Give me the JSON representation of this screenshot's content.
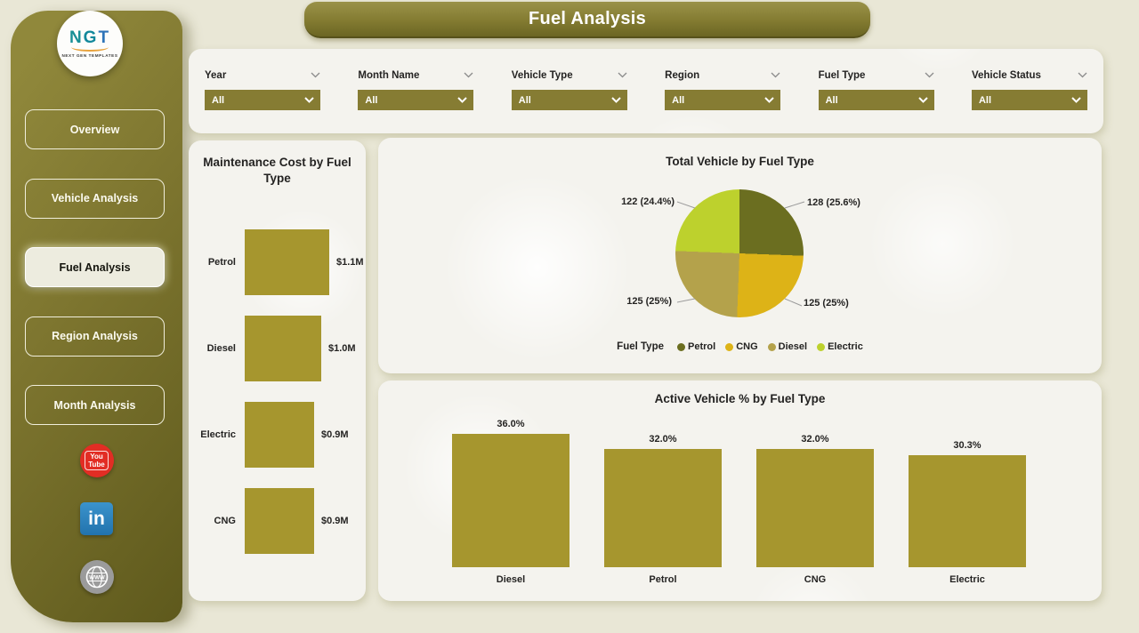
{
  "page": {
    "title": "Fuel Analysis"
  },
  "sidebar": {
    "logo": {
      "text": "NGT",
      "subtext": "NEXT GEN TEMPLATES"
    },
    "items": [
      {
        "label": "Overview",
        "active": false
      },
      {
        "label": "Vehicle Analysis",
        "active": false
      },
      {
        "label": "Fuel Analysis",
        "active": true
      },
      {
        "label": "Region Analysis",
        "active": false
      },
      {
        "label": "Month Analysis",
        "active": false
      }
    ],
    "social": [
      {
        "name": "youtube",
        "lines": [
          "You",
          "Tube"
        ],
        "color": "#e22d24"
      },
      {
        "name": "linkedin",
        "label": "in",
        "color": "#2a7fbc"
      },
      {
        "name": "website",
        "label": "WWW",
        "color": "#9b9b9b"
      }
    ]
  },
  "filters": [
    {
      "label": "Year",
      "value": "All"
    },
    {
      "label": "Month Name",
      "value": "All"
    },
    {
      "label": "Vehicle Type",
      "value": "All"
    },
    {
      "label": "Region",
      "value": "All"
    },
    {
      "label": "Fuel Type",
      "value": "All"
    },
    {
      "label": "Vehicle Status",
      "value": "All"
    }
  ],
  "colors": {
    "accent_olive": "#837b31",
    "bar_fill": "#a6962e",
    "dropdown_bg": "#867c33",
    "panel_bg": "#f4f3ee",
    "page_bg": "#e9e7d6"
  },
  "chart_data": [
    {
      "type": "bar",
      "orientation": "horizontal",
      "title": "Maintenance Cost by Fuel Type",
      "categories": [
        "Petrol",
        "Diesel",
        "Electric",
        "CNG"
      ],
      "values": [
        1.1,
        1.0,
        0.9,
        0.9
      ],
      "value_labels": [
        "$1.1M",
        "$1.0M",
        "$0.9M",
        "$0.9M"
      ],
      "xlim": [
        0,
        1.1
      ],
      "bar_color": "#a6962e",
      "grid": false
    },
    {
      "type": "pie",
      "title": "Total Vehicle by Fuel Type",
      "legend_title": "Fuel Type",
      "legend_position": "bottom",
      "slices": [
        {
          "name": "Petrol",
          "value": 128,
          "pct": 25.6,
          "label": "128 (25.6%)",
          "color": "#6b6e20"
        },
        {
          "name": "CNG",
          "value": 125,
          "pct": 25.0,
          "label": "125 (25%)",
          "color": "#ddb317"
        },
        {
          "name": "Diesel",
          "value": 125,
          "pct": 25.0,
          "label": "125 (25%)",
          "color": "#b4a24b"
        },
        {
          "name": "Electric",
          "value": 122,
          "pct": 24.4,
          "label": "122 (24.4%)",
          "color": "#bdd12d"
        }
      ]
    },
    {
      "type": "bar",
      "orientation": "vertical",
      "title": "Active Vehicle % by Fuel Type",
      "categories": [
        "Diesel",
        "Petrol",
        "CNG",
        "Electric"
      ],
      "values": [
        36.0,
        32.0,
        32.0,
        30.3
      ],
      "value_labels": [
        "36.0%",
        "32.0%",
        "32.0%",
        "30.3%"
      ],
      "ylim": [
        0,
        40
      ],
      "bar_color": "#a6962e",
      "grid": false
    }
  ]
}
